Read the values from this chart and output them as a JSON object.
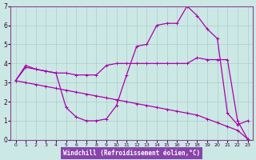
{
  "xlabel": "Windchill (Refroidissement éolien,°C)",
  "xlim": [
    -0.5,
    23.5
  ],
  "ylim": [
    0,
    7
  ],
  "xticks": [
    0,
    1,
    2,
    3,
    4,
    5,
    6,
    7,
    8,
    9,
    10,
    11,
    12,
    13,
    14,
    15,
    16,
    17,
    18,
    19,
    20,
    21,
    22,
    23
  ],
  "yticks": [
    0,
    1,
    2,
    3,
    4,
    5,
    6,
    7
  ],
  "bg_color": "#cce8e4",
  "grid_color": "#aacccc",
  "line_color": "#aa00aa",
  "lines": [
    {
      "x": [
        0,
        1,
        2,
        3,
        4,
        5,
        6,
        7,
        8,
        9,
        10,
        11,
        12,
        13,
        14,
        15,
        16,
        17,
        18,
        19,
        20,
        21,
        22,
        23
      ],
      "y": [
        3.1,
        3.9,
        3.7,
        3.6,
        3.5,
        1.7,
        1.2,
        1.0,
        1.0,
        1.1,
        1.8,
        3.4,
        4.9,
        5.0,
        6.0,
        6.1,
        6.1,
        7.0,
        6.5,
        5.8,
        5.3,
        1.4,
        0.8,
        1.0
      ]
    },
    {
      "x": [
        0,
        1,
        2,
        3,
        4,
        5,
        6,
        7,
        8,
        9,
        10,
        11,
        12,
        13,
        14,
        15,
        16,
        17,
        18,
        19,
        20,
        21,
        22,
        23
      ],
      "y": [
        3.1,
        3.8,
        3.7,
        3.6,
        3.5,
        3.5,
        3.4,
        3.4,
        3.4,
        3.9,
        4.0,
        4.0,
        4.0,
        4.0,
        4.0,
        4.0,
        4.0,
        4.0,
        4.3,
        4.2,
        4.2,
        4.2,
        1.0,
        0.05
      ]
    },
    {
      "x": [
        0,
        1,
        2,
        3,
        4,
        5,
        6,
        7,
        8,
        9,
        10,
        11,
        12,
        13,
        14,
        15,
        16,
        17,
        18,
        19,
        20,
        21,
        22,
        23
      ],
      "y": [
        3.1,
        3.0,
        2.9,
        2.8,
        2.7,
        2.6,
        2.5,
        2.4,
        2.3,
        2.2,
        2.1,
        2.0,
        1.9,
        1.8,
        1.7,
        1.6,
        1.5,
        1.4,
        1.3,
        1.1,
        0.9,
        0.7,
        0.5,
        0.05
      ]
    }
  ]
}
